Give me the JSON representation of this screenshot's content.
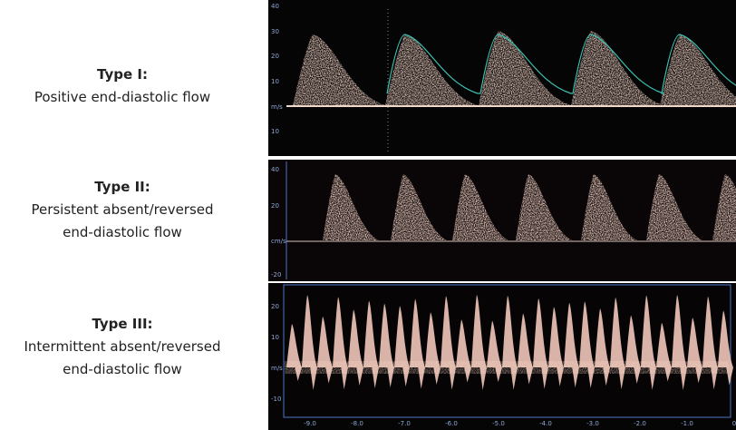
{
  "labels": [
    {
      "title": "Type I:",
      "lines": [
        "Positive end-diastolic flow"
      ]
    },
    {
      "title": "Type II:",
      "lines": [
        "Persistent absent/reversed",
        "end-diastolic flow"
      ]
    },
    {
      "title": "Type III:",
      "lines": [
        "Intermittent absent/reversed",
        "end-diastolic flow"
      ]
    }
  ],
  "panels": [
    {
      "scale": [
        "40",
        "30",
        "20",
        "10",
        "m/s",
        "10"
      ]
    },
    {
      "scale": [
        "40",
        "20",
        "cm/s",
        "-20"
      ]
    },
    {
      "scale": [
        "20",
        "10",
        "m/s",
        "-10"
      ]
    }
  ],
  "time_axis": [
    "-9.0",
    "-8.0",
    "-7.0",
    "-6.0",
    "-5.0",
    "-4.0",
    "-3.0",
    "-2.0",
    "-1.0",
    "0"
  ]
}
